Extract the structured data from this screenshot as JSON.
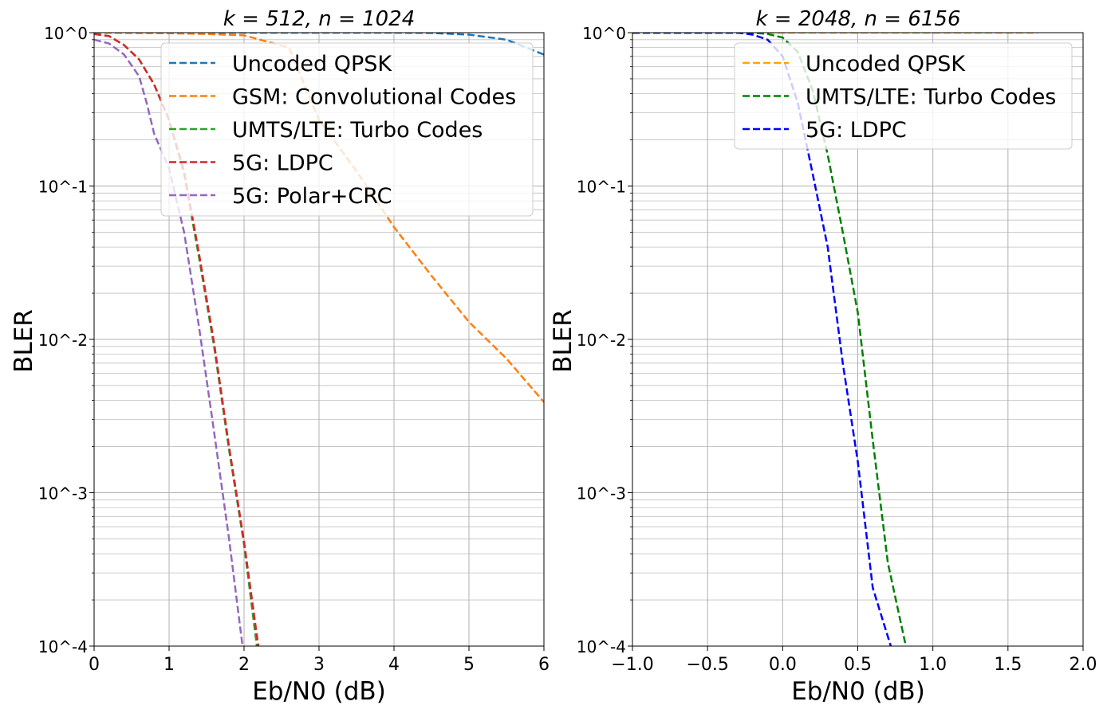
{
  "chart_data": [
    {
      "type": "line",
      "title": "k = 512, n = 1024",
      "xlabel": "Eb/N0 (dB)",
      "ylabel": "BLER",
      "xlim": [
        0,
        6
      ],
      "ylim": [
        0.0001,
        1
      ],
      "yscale": "log",
      "xticks": [
        0,
        1,
        2,
        3,
        4,
        5,
        6
      ],
      "xtick_labels": [
        "0",
        "1",
        "2",
        "3",
        "4",
        "5",
        "6"
      ],
      "yticks": [
        1,
        0.1,
        0.01,
        0.001,
        0.0001
      ],
      "ytick_labels": [
        "10^0",
        "10^-1",
        "10^-2",
        "10^-3",
        "10^-4"
      ],
      "grid": "major and minor",
      "legend_position": "top-right",
      "series": [
        {
          "name": "Uncoded QPSK",
          "color": "#1f77b4",
          "style": "dashed",
          "x": [
            0,
            1,
            2,
            3,
            4,
            4.5,
            5,
            5.5,
            6
          ],
          "y": [
            1,
            1,
            1,
            1,
            1,
            0.995,
            0.97,
            0.9,
            0.72
          ]
        },
        {
          "name": "GSM: Convolutional Codes",
          "color": "#ff7f0e",
          "style": "dashed",
          "x": [
            0,
            1,
            1.5,
            2,
            2.6,
            3,
            3.5,
            4,
            4.5,
            5,
            5.5,
            6
          ],
          "y": [
            1,
            0.99,
            0.98,
            0.96,
            0.8,
            0.27,
            0.125,
            0.054,
            0.026,
            0.013,
            0.0075,
            0.0039
          ]
        },
        {
          "name": "UMTS/LTE: Turbo Codes",
          "color": "#2ca02c",
          "style": "dashed",
          "x": [
            0,
            0.2,
            0.4,
            0.6,
            0.8,
            1.0,
            1.2,
            1.4,
            1.6,
            1.8,
            2.0,
            2.17
          ],
          "y": [
            0.98,
            0.95,
            0.83,
            0.67,
            0.46,
            0.27,
            0.12,
            0.034,
            0.009,
            0.0019,
            0.00046,
            0.0001
          ]
        },
        {
          "name": "5G: LDPC",
          "color": "#d62728",
          "style": "dashed",
          "x": [
            0,
            0.2,
            0.4,
            0.6,
            0.8,
            1.0,
            1.2,
            1.4,
            1.6,
            1.8,
            2.0,
            2.19
          ],
          "y": [
            0.98,
            0.95,
            0.83,
            0.67,
            0.46,
            0.27,
            0.125,
            0.036,
            0.0095,
            0.002,
            0.00048,
            0.0001
          ]
        },
        {
          "name": "5G: Polar+CRC",
          "color": "#9467bd",
          "style": "dashed",
          "x": [
            0,
            0.2,
            0.4,
            0.6,
            0.7,
            0.8,
            1.0,
            1.2,
            1.4,
            1.6,
            1.8,
            1.98
          ],
          "y": [
            0.9,
            0.85,
            0.72,
            0.52,
            0.35,
            0.22,
            0.13,
            0.05,
            0.012,
            0.0025,
            0.0005,
            0.0001
          ]
        }
      ]
    },
    {
      "type": "line",
      "title": "k = 2048, n = 6156",
      "xlabel": "Eb/N0 (dB)",
      "ylabel": "BLER",
      "xlim": [
        -1.0,
        2.0
      ],
      "ylim": [
        0.0001,
        1
      ],
      "yscale": "log",
      "xticks": [
        -1.0,
        -0.5,
        0.0,
        0.5,
        1.0,
        1.5,
        2.0
      ],
      "xtick_labels": [
        "−1.0",
        "−0.5",
        "0.0",
        "0.5",
        "1.0",
        "1.5",
        "2.0"
      ],
      "yticks": [
        1,
        0.1,
        0.01,
        0.001,
        0.0001
      ],
      "ytick_labels": [
        "10^0",
        "10^-1",
        "10^-2",
        "10^-3",
        "10^-4"
      ],
      "grid": "major and minor",
      "legend_position": "top-right",
      "series": [
        {
          "name": "Uncoded QPSK",
          "color": "#ffa500",
          "style": "dashed",
          "x": [
            -1.0,
            0,
            1.0,
            1.7
          ],
          "y": [
            1,
            1,
            1,
            1
          ]
        },
        {
          "name": "UMTS/LTE: Turbo Codes",
          "color": "#008000",
          "style": "dashed",
          "x": [
            -1.0,
            -0.2,
            -0.1,
            0.0,
            0.1,
            0.2,
            0.3,
            0.4,
            0.5,
            0.6,
            0.7,
            0.82
          ],
          "y": [
            1,
            1,
            0.98,
            0.93,
            0.75,
            0.42,
            0.16,
            0.05,
            0.015,
            0.0022,
            0.00035,
            0.0001
          ]
        },
        {
          "name": "5G: LDPC",
          "color": "#0000ff",
          "style": "dashed",
          "x": [
            -1.0,
            -0.3,
            -0.2,
            -0.1,
            0.0,
            0.1,
            0.2,
            0.3,
            0.4,
            0.5,
            0.6,
            0.72
          ],
          "y": [
            1,
            1,
            0.97,
            0.9,
            0.7,
            0.35,
            0.12,
            0.04,
            0.007,
            0.0016,
            0.00024,
            0.0001
          ]
        }
      ]
    }
  ]
}
